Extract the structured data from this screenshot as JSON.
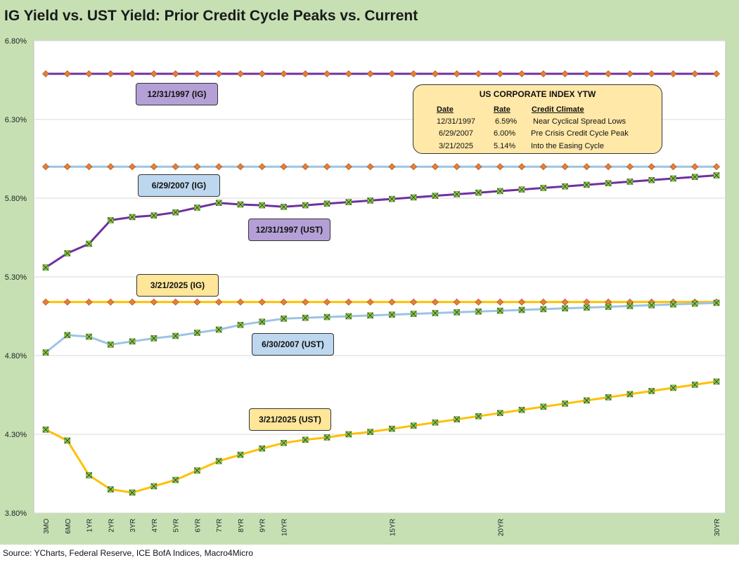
{
  "title": "IG Yield vs. UST Yield: Prior Credit Cycle Peaks vs. Current",
  "source": "Source: YCharts, Federal Reserve, ICE BofA Indices, Macro4Micro",
  "info_box": {
    "title": "US CORPORATE INDEX YTW",
    "headers": [
      "Date",
      "Rate",
      "Credit Climate"
    ],
    "rows": [
      {
        "date": "12/31/1997",
        "rate": "6.59%",
        "climate": "Near Cyclical Spread Lows"
      },
      {
        "date": "6/29/2007",
        "rate": "6.00%",
        "climate": "Pre Crisis Credit Cycle Peak"
      },
      {
        "date": "3/21/2025",
        "rate": "5.14%",
        "climate": "Into the Easing Cycle"
      }
    ]
  },
  "colors": {
    "purple": "#7030a0",
    "lightblue": "#9dc3e6",
    "gold": "#ffc000",
    "ig_marker": "#ed7d31",
    "ust_marker": "#92d050",
    "purple_box": "#b4a0d6",
    "blue_box": "#bdd7ee",
    "gold_box": "#ffe699"
  },
  "chart_data": {
    "type": "line",
    "x_positions": [
      0.25,
      0.5,
      1,
      2,
      3,
      4,
      5,
      6,
      7,
      8,
      9,
      10,
      11,
      12,
      13,
      14,
      15,
      16,
      17,
      18,
      19,
      20,
      21,
      22,
      23,
      24,
      25,
      26,
      27,
      28,
      29,
      30
    ],
    "x_tick_labels": [
      "3MO",
      "6MO",
      "1YR",
      "2YR",
      "3YR",
      "4YR",
      "5YR",
      "6YR",
      "7YR",
      "8YR",
      "9YR",
      "10YR",
      "",
      "",
      "",
      "",
      "15YR",
      "",
      "",
      "",
      "",
      "20YR",
      "",
      "",
      "",
      "",
      "",
      "",
      "",
      "",
      "",
      "30YR"
    ],
    "ylim": [
      3.8,
      6.8
    ],
    "y_ticks": [
      "3.80%",
      "4.30%",
      "4.80%",
      "5.30%",
      "5.80%",
      "6.30%",
      "6.80%"
    ],
    "y_tick_values": [
      3.8,
      4.3,
      4.8,
      5.3,
      5.8,
      6.3,
      6.8
    ],
    "grid": true,
    "series": [
      {
        "name": "12/31/1997 (IG)",
        "kind": "ig",
        "color_key": "purple",
        "box_key": "purple_box",
        "value": 6.59
      },
      {
        "name": "6/29/2007 (IG)",
        "kind": "ig",
        "color_key": "lightblue",
        "box_key": "blue_box",
        "value": 6.0
      },
      {
        "name": "3/21/2025 (IG)",
        "kind": "ig",
        "color_key": "gold",
        "box_key": "gold_box",
        "value": 5.14
      },
      {
        "name": "12/31/1997 (UST)",
        "kind": "ust",
        "color_key": "purple",
        "box_key": "purple_box",
        "values": [
          5.36,
          5.45,
          5.51,
          5.66,
          5.68,
          5.69,
          5.71,
          5.74,
          5.77,
          5.76,
          5.755,
          5.745,
          5.755,
          5.765,
          5.775,
          5.785,
          5.795,
          5.805,
          5.815,
          5.825,
          5.835,
          5.845,
          5.855,
          5.865,
          5.875,
          5.885,
          5.895,
          5.905,
          5.915,
          5.925,
          5.935,
          5.945
        ]
      },
      {
        "name": "6/30/2007 (UST)",
        "kind": "ust",
        "color_key": "lightblue",
        "box_key": "blue_box",
        "values": [
          4.82,
          4.93,
          4.92,
          4.87,
          4.89,
          4.91,
          4.925,
          4.945,
          4.965,
          4.995,
          5.015,
          5.035,
          5.04,
          5.045,
          5.05,
          5.055,
          5.06,
          5.065,
          5.07,
          5.075,
          5.08,
          5.085,
          5.09,
          5.095,
          5.1,
          5.105,
          5.11,
          5.115,
          5.12,
          5.125,
          5.13,
          5.135
        ]
      },
      {
        "name": "3/21/2025 (UST)",
        "kind": "ust",
        "color_key": "gold",
        "box_key": "gold_box",
        "values": [
          4.33,
          4.26,
          4.04,
          3.95,
          3.93,
          3.97,
          4.01,
          4.07,
          4.13,
          4.17,
          4.21,
          4.245,
          4.265,
          4.28,
          4.3,
          4.315,
          4.335,
          4.355,
          4.375,
          4.395,
          4.415,
          4.435,
          4.455,
          4.475,
          4.495,
          4.515,
          4.535,
          4.555,
          4.575,
          4.595,
          4.615,
          4.635
        ]
      }
    ]
  }
}
